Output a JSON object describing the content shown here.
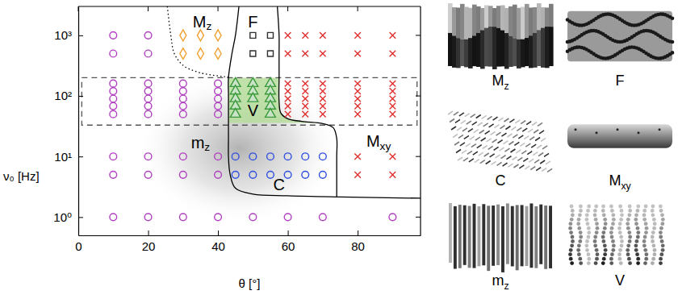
{
  "chart_data": {
    "type": "scatter",
    "x_label": "θ [°]",
    "y_label": "ν₀ [Hz]",
    "xlim": [
      0,
      98
    ],
    "ylim": [
      0.5,
      3000
    ],
    "xticks": [
      0,
      20,
      40,
      60,
      80
    ],
    "yticks": [
      {
        "value": 1,
        "label": "10⁰"
      },
      {
        "value": 10,
        "label": "10¹"
      },
      {
        "value": 100,
        "label": "10²"
      },
      {
        "value": 1000,
        "label": "10³"
      }
    ],
    "log": "y",
    "grid": false,
    "annotations": [
      {
        "text": "Mz",
        "x": 35.5,
        "y": 1700
      },
      {
        "text": "F",
        "x": 50,
        "y": 1700
      },
      {
        "text": "V",
        "x": 50,
        "y": 58
      },
      {
        "text": "mz",
        "x": 35,
        "y": 17
      },
      {
        "text": "C",
        "x": 57.5,
        "y": 3.4
      },
      {
        "text": "Mxy",
        "x": 86,
        "y": 18
      }
    ],
    "series": [
      {
        "type": "area",
        "color": "#b6dc9c",
        "x": [
          43,
          57.5,
          57.5,
          58,
          60,
          64,
          70,
          43
        ],
        "values": [
          200,
          200,
          80,
          52,
          42,
          38,
          36,
          36
        ]
      },
      {
        "type": "line",
        "line_style": "dashed",
        "color": "#555555",
        "x": [
          1,
          97,
          97,
          1,
          1
        ],
        "values": [
          200,
          200,
          33,
          33,
          200
        ]
      },
      {
        "type": "line",
        "line_style": "dotted",
        "color": "#000000",
        "x": [
          25.5,
          26.5,
          27.5,
          30,
          35,
          43
        ],
        "values": [
          3000,
          1000,
          500,
          320,
          240,
          205
        ]
      },
      {
        "type": "line",
        "line_style": "solid",
        "color": "#000000",
        "x": [
          46,
          45,
          44,
          43,
          43,
          43,
          43,
          43,
          43.5,
          45,
          50,
          60,
          75,
          98
        ],
        "values": [
          3000,
          1000,
          500,
          200,
          100,
          50,
          20,
          10,
          5,
          3,
          2.4,
          2.25,
          2.15,
          2.05
        ]
      },
      {
        "type": "line",
        "line_style": "solid",
        "color": "#000000",
        "x": [
          57,
          57.5,
          57.5,
          57.5,
          57.5,
          58,
          60,
          64,
          70,
          73,
          74,
          74,
          74,
          74
        ],
        "values": [
          3000,
          1000,
          500,
          200,
          80,
          52,
          42,
          38,
          35,
          30,
          20,
          10,
          5,
          2.15
        ]
      },
      {
        "type": "scatter",
        "marker": "circle",
        "color": "#b040c0",
        "x": [
          10,
          20,
          10,
          20,
          10,
          20,
          30,
          40,
          10,
          20,
          30,
          40,
          10,
          20,
          30,
          40,
          10,
          20,
          30,
          40,
          10,
          20,
          30,
          40,
          10,
          20,
          30,
          40,
          10,
          20,
          30,
          40,
          10,
          20,
          30,
          40,
          50,
          60,
          70,
          90
        ],
        "values": [
          1000,
          1000,
          500,
          500,
          160,
          160,
          160,
          160,
          120,
          120,
          120,
          120,
          90,
          90,
          90,
          90,
          68,
          68,
          68,
          68,
          50,
          50,
          50,
          50,
          10,
          10,
          10,
          10,
          5,
          5,
          5,
          5,
          1,
          1,
          1,
          1,
          1,
          1,
          1,
          1
        ]
      },
      {
        "type": "scatter",
        "marker": "diamond",
        "color": "#f0a030",
        "x": [
          30,
          35,
          40,
          30,
          35,
          40
        ],
        "values": [
          1000,
          1000,
          1000,
          500,
          500,
          500
        ]
      },
      {
        "type": "scatter",
        "marker": "square",
        "color": "#303030",
        "x": [
          50,
          55,
          50,
          55
        ],
        "values": [
          1000,
          1000,
          500,
          500
        ]
      },
      {
        "type": "scatter",
        "marker": "triangle",
        "color": "#3a9a3a",
        "x": [
          45,
          50,
          55,
          45,
          50,
          55,
          45,
          50,
          55,
          45,
          55,
          45,
          55
        ],
        "values": [
          160,
          160,
          160,
          120,
          120,
          120,
          90,
          90,
          90,
          68,
          68,
          50,
          50
        ]
      },
      {
        "type": "scatter",
        "marker": "circle",
        "color": "#3050e0",
        "x": [
          45,
          50,
          55,
          60,
          65,
          70,
          45,
          50,
          55,
          60,
          65,
          70
        ],
        "values": [
          10,
          10,
          10,
          10,
          10,
          10,
          5,
          5,
          5,
          5,
          5,
          5
        ]
      },
      {
        "type": "scatter",
        "marker": "x",
        "color": "#e03030",
        "x": [
          60,
          65,
          70,
          80,
          90,
          60,
          65,
          70,
          80,
          90,
          60,
          65,
          70,
          80,
          90,
          60,
          65,
          70,
          80,
          90,
          60,
          65,
          70,
          80,
          90,
          60,
          65,
          70,
          80,
          90,
          60,
          65,
          70,
          80,
          90,
          80,
          90,
          80,
          90
        ],
        "values": [
          1000,
          1000,
          1000,
          1000,
          1000,
          500,
          500,
          500,
          500,
          500,
          160,
          160,
          160,
          160,
          160,
          120,
          120,
          120,
          120,
          120,
          90,
          90,
          90,
          90,
          90,
          68,
          68,
          68,
          68,
          68,
          50,
          50,
          50,
          50,
          50,
          10,
          10,
          5,
          5
        ]
      }
    ]
  },
  "snapshots": [
    "Mz",
    "F",
    "C",
    "Mxy",
    "mz",
    "V"
  ]
}
